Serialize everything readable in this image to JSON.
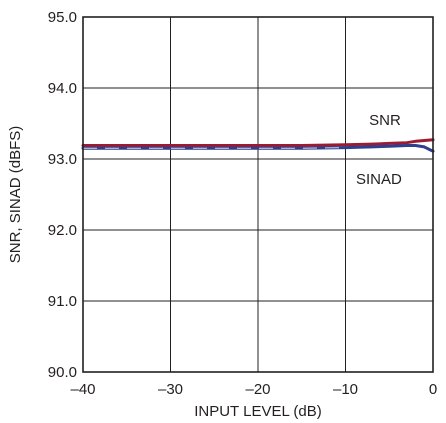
{
  "chart_data": {
    "type": "line",
    "xlabel": "INPUT LEVEL (dB)",
    "ylabel": "SNR, SINAD (dBFS)",
    "xlim": [
      -40,
      0
    ],
    "ylim": [
      90.0,
      95.0
    ],
    "x_ticks": [
      -40,
      -30,
      -20,
      -10,
      0
    ],
    "x_tick_labels": [
      "–40",
      "–30",
      "–20",
      "–10",
      "0"
    ],
    "y_ticks": [
      90.0,
      91.0,
      92.0,
      93.0,
      94.0,
      95.0
    ],
    "y_tick_labels": [
      "90.0",
      "91.0",
      "92.0",
      "93.0",
      "94.0",
      "95.0"
    ],
    "grid": true,
    "annotations": [
      {
        "text": "SNR",
        "x": -7.3,
        "y": 93.55
      },
      {
        "text": "SINAD",
        "x": -8.8,
        "y": 92.72
      }
    ],
    "series": [
      {
        "name": "SNR",
        "color": "#9b1b30",
        "x": [
          -40,
          -35,
          -30,
          -25,
          -20,
          -15,
          -10,
          -7,
          -5,
          -3,
          -2,
          -1,
          0
        ],
        "y": [
          93.19,
          93.19,
          93.19,
          93.19,
          93.19,
          93.19,
          93.2,
          93.21,
          93.22,
          93.23,
          93.25,
          93.26,
          93.27
        ]
      },
      {
        "name": "SINAD",
        "color": "#2e3f8f",
        "x": [
          -40,
          -35,
          -30,
          -25,
          -20,
          -15,
          -10,
          -7,
          -5,
          -3,
          -2,
          -1,
          -0.5,
          0
        ],
        "y": [
          93.15,
          93.15,
          93.15,
          93.15,
          93.15,
          93.15,
          93.16,
          93.17,
          93.18,
          93.19,
          93.19,
          93.17,
          93.14,
          93.11
        ]
      }
    ]
  }
}
